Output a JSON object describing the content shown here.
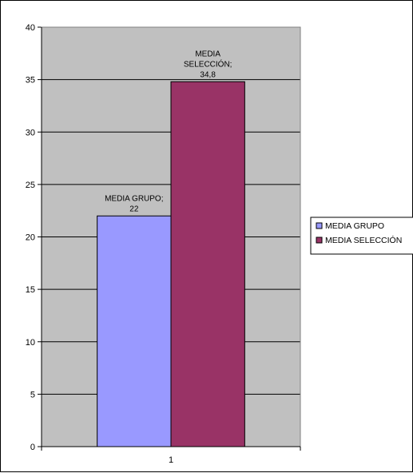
{
  "chart_data": {
    "type": "bar",
    "categories": [
      "1"
    ],
    "series": [
      {
        "name": "MEDIA GRUPO",
        "values": [
          22
        ],
        "color": "#9999ff",
        "label_lines": [
          "MEDIA GRUPO;",
          "22"
        ]
      },
      {
        "name": "MEDIA SELECCIÓN",
        "values": [
          34.8
        ],
        "color": "#993366",
        "label_lines": [
          "MEDIA",
          "SELECCIÓN;",
          "34,8"
        ]
      }
    ],
    "title": "",
    "xlabel": "",
    "ylabel": "",
    "ylim": [
      0,
      40
    ],
    "yticks": [
      0,
      5,
      10,
      15,
      20,
      25,
      30,
      35,
      40
    ],
    "grid": true,
    "plot_background": "#c0c0c0",
    "legend": {
      "position": "right",
      "entries": [
        "MEDIA GRUPO",
        "MEDIA SELECCIÓN"
      ]
    }
  }
}
